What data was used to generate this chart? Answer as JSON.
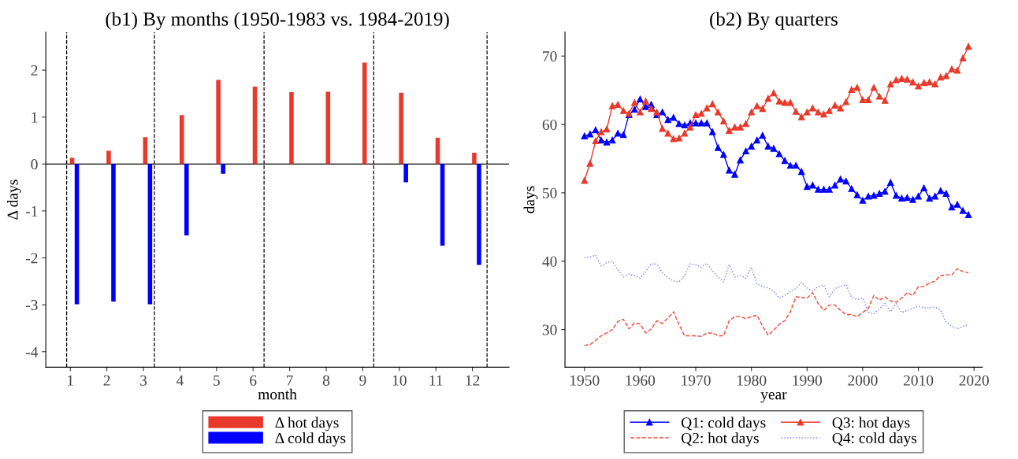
{
  "chart_data": [
    {
      "type": "bar",
      "title": "(b1) By months (1950-1983 vs. 1984-2019)",
      "xlabel": "month",
      "ylabel": "Δ days",
      "x": [
        1,
        2,
        3,
        4,
        5,
        6,
        7,
        8,
        9,
        10,
        11,
        12
      ],
      "series": [
        {
          "name": "Δ hot days",
          "color": "#e8392a",
          "values": [
            0.13,
            0.28,
            0.57,
            1.04,
            1.79,
            1.65,
            1.53,
            1.54,
            2.16,
            1.52,
            0.56,
            0.24
          ]
        },
        {
          "name": "Δ cold days",
          "color": "#0000ff",
          "values": [
            -2.99,
            -2.93,
            -2.99,
            -1.52,
            -0.21,
            null,
            null,
            null,
            null,
            -0.39,
            -1.74,
            -2.15
          ]
        }
      ],
      "xlim": [
        0.33,
        13.0
      ],
      "xticks": [
        1,
        2,
        3,
        4,
        5,
        6,
        7,
        8,
        9,
        10,
        11,
        12
      ],
      "ylim": [
        -4.33,
        2.81
      ],
      "yticks": [
        -4,
        -3,
        -2,
        -1,
        0,
        1,
        2
      ],
      "ref_lines": [
        {
          "axis": "y",
          "value": 0,
          "color": "#000000",
          "line_style": "solid"
        },
        {
          "axis": "x",
          "value": 0.9,
          "color": "#000000",
          "line_style": "dashed"
        },
        {
          "axis": "x",
          "value": 3.3,
          "color": "#000000",
          "line_style": "dashed"
        },
        {
          "axis": "x",
          "value": 6.3,
          "color": "#000000",
          "line_style": "dashed"
        },
        {
          "axis": "x",
          "value": 9.3,
          "color": "#000000",
          "line_style": "dashed"
        },
        {
          "axis": "x",
          "value": 12.4,
          "color": "#000000",
          "line_style": "dashed"
        }
      ],
      "grid": false,
      "legend": "bottom"
    },
    {
      "type": "line",
      "title": "(b2) By quarters",
      "xlabel": "year",
      "ylabel": "days",
      "x": [
        1950,
        1951,
        1952,
        1953,
        1954,
        1955,
        1956,
        1957,
        1958,
        1959,
        1960,
        1961,
        1962,
        1963,
        1964,
        1965,
        1966,
        1967,
        1968,
        1969,
        1970,
        1971,
        1972,
        1973,
        1974,
        1975,
        1976,
        1977,
        1978,
        1979,
        1980,
        1981,
        1982,
        1983,
        1984,
        1985,
        1986,
        1987,
        1988,
        1989,
        1990,
        1991,
        1992,
        1993,
        1994,
        1995,
        1996,
        1997,
        1998,
        1999,
        2000,
        2001,
        2002,
        2003,
        2004,
        2005,
        2006,
        2007,
        2008,
        2009,
        2010,
        2011,
        2012,
        2013,
        2014,
        2015,
        2016,
        2017,
        2018,
        2019
      ],
      "series": [
        {
          "name": "Q1: cold days",
          "color": "#0000ff",
          "marker": "triangle",
          "line_style": "solid",
          "values": [
            58.3,
            58.6,
            59.2,
            57.7,
            57.4,
            57.7,
            58.7,
            58.5,
            61.4,
            62.2,
            63.7,
            62.6,
            62.9,
            61.4,
            61.8,
            60.7,
            61.0,
            60.1,
            59.9,
            60.2,
            60.2,
            60.2,
            60.2,
            58.9,
            56.6,
            55.6,
            53.3,
            52.7,
            54.8,
            56.1,
            56.8,
            57.7,
            58.4,
            56.8,
            56.5,
            55.7,
            54.7,
            54.0,
            54.0,
            53.1,
            50.9,
            51.1,
            50.5,
            50.5,
            50.5,
            51.1,
            52.0,
            51.7,
            50.6,
            49.7,
            48.9,
            49.5,
            49.6,
            49.9,
            50.2,
            51.5,
            49.6,
            49.2,
            49.3,
            49.0,
            49.5,
            50.7,
            49.2,
            49.5,
            50.3,
            49.9,
            47.9,
            48.3,
            47.4,
            46.8
          ]
        },
        {
          "name": "Q2: hot days",
          "color": "#f04a3a",
          "marker": "none",
          "line_style": "dashed",
          "values": [
            27.7,
            27.8,
            28.4,
            29.1,
            29.5,
            30.0,
            31.2,
            31.5,
            30.1,
            31.0,
            30.8,
            29.5,
            30.1,
            31.3,
            30.9,
            31.7,
            32.6,
            30.7,
            29.1,
            29.1,
            29.1,
            29.0,
            29.5,
            29.5,
            29.1,
            29.1,
            31.3,
            31.9,
            31.9,
            31.6,
            31.9,
            32.1,
            30.5,
            29.2,
            29.9,
            30.8,
            31.3,
            32.6,
            34.8,
            34.7,
            34.6,
            35.4,
            33.8,
            32.8,
            33.6,
            33.6,
            32.8,
            32.2,
            32.2,
            31.9,
            32.5,
            33.1,
            35.0,
            34.3,
            34.8,
            34.2,
            34.0,
            34.6,
            35.4,
            35.0,
            36.3,
            36.3,
            36.8,
            37.1,
            37.9,
            38.0,
            38.0,
            38.9,
            38.5,
            38.3
          ]
        },
        {
          "name": "Q3: hot days",
          "color": "#e8392a",
          "marker": "triangle",
          "line_style": "solid",
          "values": [
            51.8,
            54.3,
            57.6,
            58.9,
            59.3,
            62.7,
            62.9,
            62.0,
            61.6,
            63.2,
            61.8,
            63.4,
            62.3,
            61.8,
            59.4,
            58.7,
            57.9,
            58.0,
            58.7,
            59.6,
            61.4,
            61.6,
            62.4,
            63.0,
            61.8,
            60.5,
            59.1,
            59.6,
            59.6,
            60.1,
            61.8,
            62.7,
            62.3,
            63.8,
            64.6,
            63.4,
            63.2,
            63.2,
            61.9,
            61.1,
            61.8,
            62.4,
            61.8,
            61.5,
            62.0,
            62.8,
            62.4,
            63.3,
            65.1,
            65.4,
            63.6,
            63.6,
            65.4,
            64.1,
            63.5,
            65.9,
            66.5,
            66.7,
            66.6,
            66.2,
            65.6,
            66.1,
            66.2,
            65.9,
            66.9,
            67.1,
            68.1,
            67.9,
            69.7,
            71.4
          ]
        },
        {
          "name": "Q4: cold days",
          "color": "#7a7aff",
          "marker": "none",
          "line_style": "dotted",
          "values": [
            40.5,
            40.6,
            40.9,
            39.3,
            39.8,
            40.0,
            38.8,
            37.7,
            38.1,
            37.9,
            37.5,
            38.5,
            39.6,
            39.6,
            38.3,
            37.6,
            37.1,
            37.0,
            37.9,
            39.6,
            39.5,
            39.1,
            39.7,
            38.6,
            37.7,
            37.0,
            39.5,
            37.7,
            37.9,
            37.5,
            39.1,
            36.7,
            36.3,
            36.1,
            35.6,
            34.6,
            35.0,
            35.6,
            36.0,
            36.9,
            36.1,
            35.6,
            36.3,
            36.5,
            34.8,
            36.0,
            36.3,
            36.6,
            34.7,
            34.4,
            34.6,
            32.5,
            32.3,
            33.0,
            33.8,
            32.6,
            33.8,
            32.5,
            32.8,
            33.1,
            33.4,
            33.2,
            33.2,
            33.3,
            32.8,
            31.1,
            30.5,
            30.1,
            30.5,
            30.7
          ]
        }
      ],
      "xlim": [
        1946.5,
        2021.5
      ],
      "xticks": [
        1950,
        1960,
        1970,
        1980,
        1990,
        2000,
        2010,
        2020
      ],
      "ylim": [
        24.5,
        73.5
      ],
      "yticks": [
        30,
        40,
        50,
        60,
        70
      ],
      "grid": false,
      "legend": "bottom"
    }
  ]
}
